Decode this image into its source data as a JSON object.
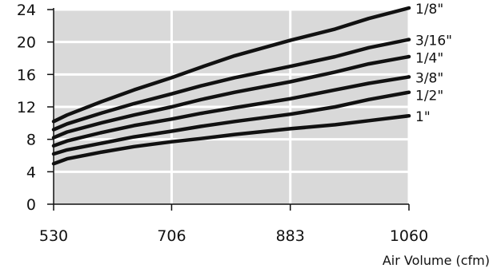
{
  "chart_data": {
    "type": "line",
    "title": "",
    "xlabel": "Air Volume (cfm)",
    "ylabel": "",
    "xlim": [
      530,
      1060
    ],
    "ylim": [
      0,
      24
    ],
    "x_ticks": [
      "530",
      "706",
      "883",
      "1060"
    ],
    "y_ticks": [
      "0",
      "4",
      "8",
      "12",
      "16",
      "20",
      "24"
    ],
    "grid": true,
    "plot_background": "#d9d9d9",
    "grid_color": "#ffffff",
    "line_color": "#111111",
    "x": [
      530,
      550,
      600,
      650,
      706,
      750,
      800,
      883,
      950,
      1000,
      1060
    ],
    "series": [
      {
        "name": "1/8\"",
        "values": [
          10.2,
          11.0,
          12.6,
          14.1,
          15.6,
          16.9,
          18.3,
          20.2,
          21.6,
          22.9,
          24.2
        ]
      },
      {
        "name": "3/16\"",
        "values": [
          9.2,
          9.9,
          11.2,
          12.4,
          13.6,
          14.6,
          15.6,
          17.0,
          18.2,
          19.3,
          20.3
        ]
      },
      {
        "name": "1/4\"",
        "values": [
          8.2,
          8.9,
          10.0,
          11.0,
          12.0,
          12.9,
          13.8,
          15.1,
          16.3,
          17.3,
          18.2
        ]
      },
      {
        "name": "3/8\"",
        "values": [
          7.2,
          7.8,
          8.8,
          9.7,
          10.5,
          11.2,
          11.9,
          13.0,
          14.1,
          14.9,
          15.7
        ]
      },
      {
        "name": "1/2\"",
        "values": [
          6.2,
          6.7,
          7.5,
          8.3,
          9.0,
          9.6,
          10.2,
          11.1,
          12.0,
          12.9,
          13.8
        ]
      },
      {
        "name": "1\"",
        "values": [
          5.0,
          5.6,
          6.4,
          7.1,
          7.7,
          8.1,
          8.6,
          9.3,
          9.8,
          10.3,
          10.9
        ]
      }
    ]
  }
}
